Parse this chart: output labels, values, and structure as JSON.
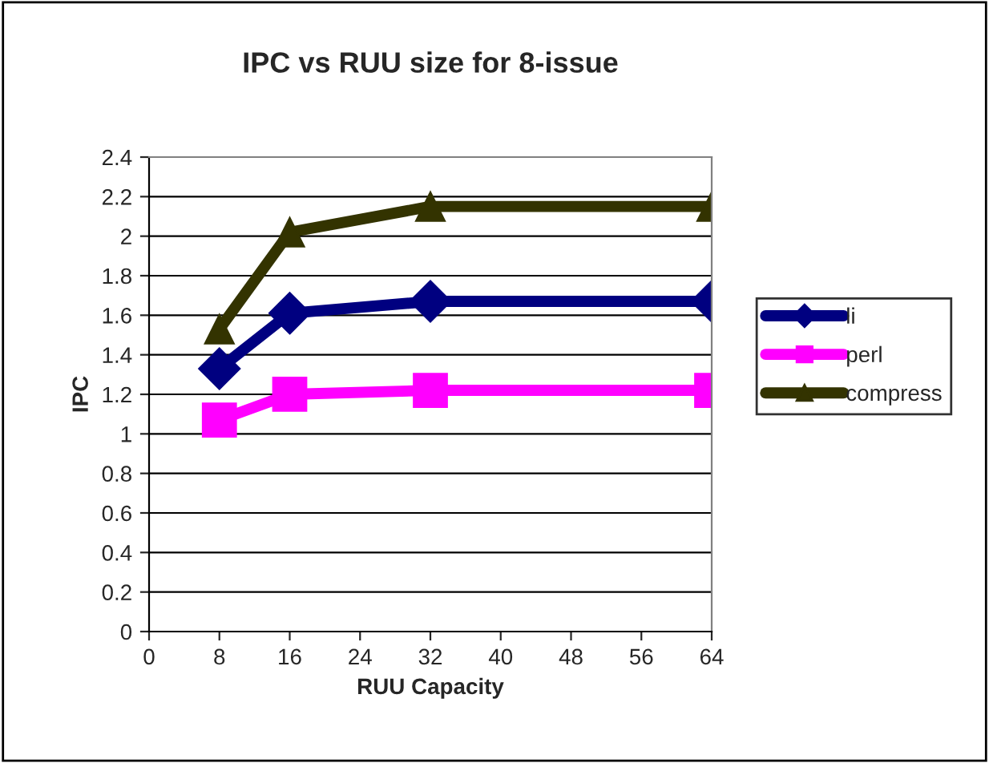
{
  "chart_data": {
    "type": "line",
    "title": "IPC vs RUU size for 8-issue",
    "xlabel": "RUU Capacity",
    "ylabel": "IPC",
    "x": [
      8,
      16,
      32,
      64
    ],
    "series": [
      {
        "name": "li",
        "color": "#000080",
        "marker": "diamond",
        "values": [
          1.33,
          1.61,
          1.67,
          1.67
        ]
      },
      {
        "name": "perl",
        "color": "#ff00ff",
        "marker": "square",
        "values": [
          1.07,
          1.2,
          1.22,
          1.22
        ]
      },
      {
        "name": "compress",
        "color": "#333300",
        "marker": "triangle",
        "values": [
          1.53,
          2.02,
          2.15,
          2.15
        ]
      }
    ],
    "xlim": [
      0,
      64
    ],
    "xticks": [
      0,
      8,
      16,
      24,
      32,
      40,
      48,
      56,
      64
    ],
    "ylim": [
      0,
      2.4
    ],
    "yticks": [
      0,
      0.2,
      0.4,
      0.6,
      0.8,
      1,
      1.2,
      1.4,
      1.6,
      1.8,
      2,
      2.2,
      2.4
    ],
    "grid": "y",
    "legend": "right",
    "line_style": "solid"
  }
}
